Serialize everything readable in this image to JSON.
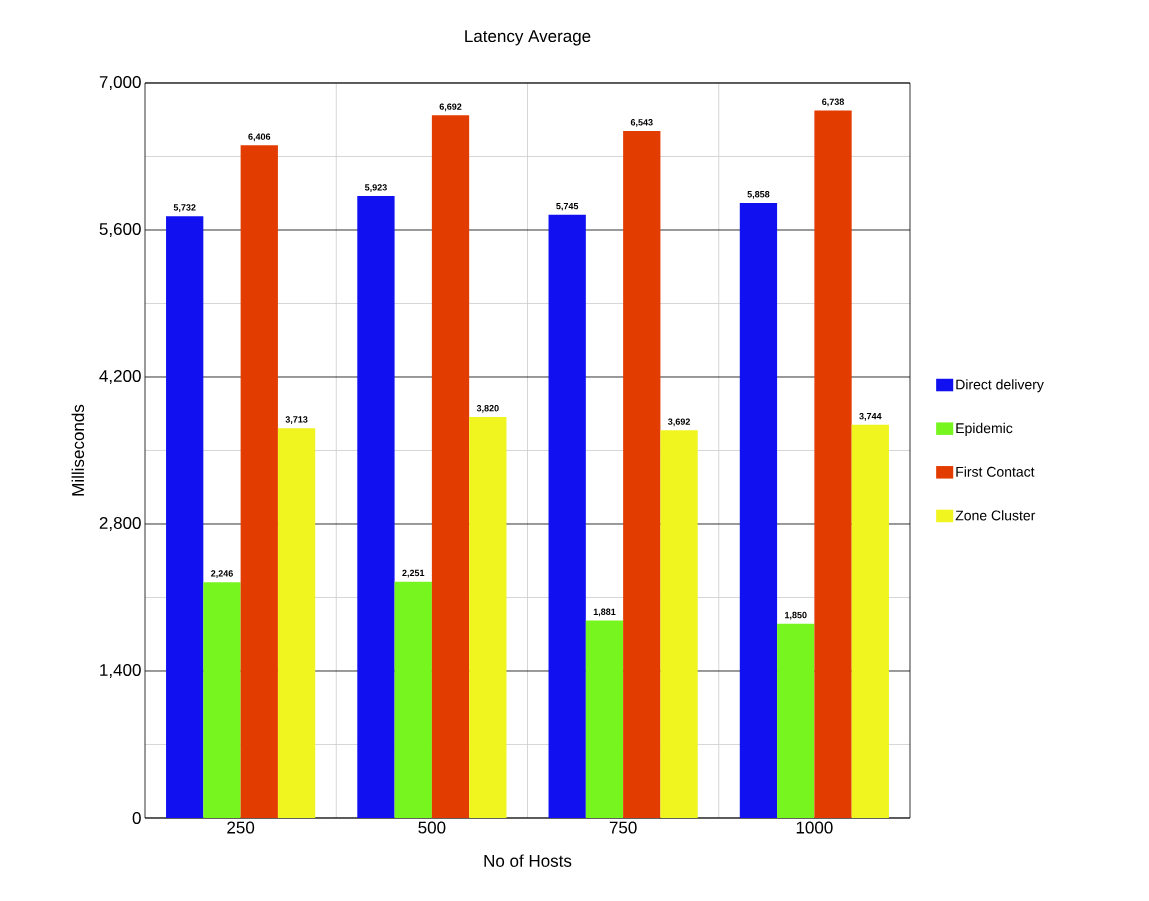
{
  "chart_data": {
    "type": "bar",
    "title": "Latency Average",
    "xlabel": "No of Hosts",
    "ylabel": "Milliseconds",
    "categories": [
      "250",
      "500",
      "750",
      "1000"
    ],
    "series": [
      {
        "name": "Direct delivery",
        "color": "#1010f0",
        "values": [
          5732,
          5923,
          5745,
          5858
        ],
        "value_labels": [
          "5,732",
          "5,923",
          "5,745",
          "5,858"
        ]
      },
      {
        "name": "Epidemic",
        "color": "#77f51f",
        "values": [
          2246,
          2251,
          1881,
          1850
        ],
        "value_labels": [
          "2,246",
          "2,251",
          "1,881",
          "1,850"
        ]
      },
      {
        "name": "First Contact",
        "color": "#e23c00",
        "values": [
          6406,
          6692,
          6543,
          6738
        ],
        "value_labels": [
          "6,406",
          "6,692",
          "6,543",
          "6,738"
        ]
      },
      {
        "name": "Zone Cluster",
        "color": "#f0f51f",
        "values": [
          3713,
          3820,
          3692,
          3744
        ],
        "value_labels": [
          "3,713",
          "3,820",
          "3,692",
          "3,744"
        ]
      }
    ],
    "ylim": [
      0,
      7000
    ],
    "yticks": [
      0,
      {
        "value": 1400,
        "label": "1,400"
      },
      {
        "value": 2800,
        "label": "2,800"
      },
      {
        "value": 4200,
        "label": "4,200"
      },
      {
        "value": 5600,
        "label": "5,600"
      },
      {
        "value": 7000,
        "label": "7,000"
      }
    ],
    "grid": true,
    "legend": "right"
  }
}
